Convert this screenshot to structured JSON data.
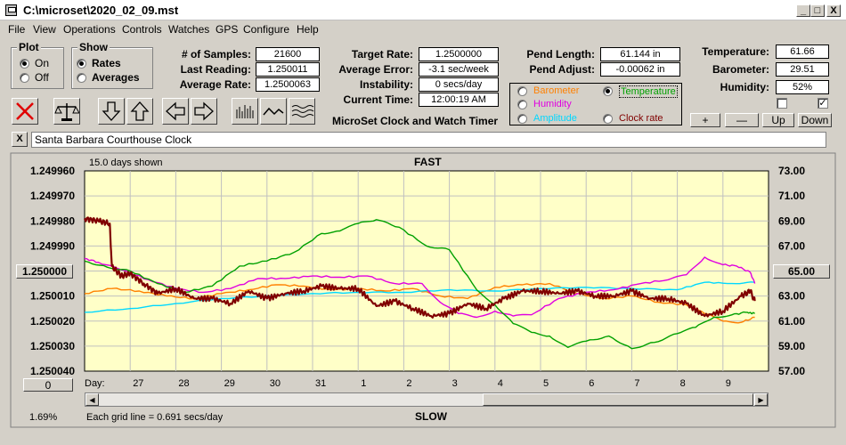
{
  "window": {
    "title": "C:\\microset\\2020_02_09.mst",
    "min": "_",
    "max": "□",
    "close": "X"
  },
  "menu": [
    "File",
    "View",
    "Operations",
    "Controls",
    "Watches",
    "GPS",
    "Configure",
    "Help"
  ],
  "plot_group": {
    "title": "Plot",
    "options": [
      "On",
      "Off"
    ],
    "selected": "On"
  },
  "show_group": {
    "title": "Show",
    "options": [
      "Rates",
      "Averages"
    ],
    "selected": "Rates"
  },
  "stats": {
    "samples_label": "# of Samples:",
    "samples": "21600",
    "last_label": "Last Reading:",
    "last": "1.250011",
    "avg_label": "Average Rate:",
    "avg": "1.2500063",
    "target_label": "Target Rate:",
    "target": "1.2500000",
    "err_label": "Average Error:",
    "err": "-3.1 sec/week",
    "inst_label": "Instability:",
    "inst": "0 secs/day",
    "time_label": "Current Time:",
    "time": "12:00:19 AM",
    "pend_len_label": "Pend Length:",
    "pend_len": "61.144 in",
    "pend_adj_label": "Pend Adjust:",
    "pend_adj": "-0.00062 in",
    "temp_label": "Temperature:",
    "temp": "61.66",
    "baro_label": "Barometer:",
    "baro": "29.51",
    "hum_label": "Humidity:",
    "hum": "52%"
  },
  "app_name": "MicroSet Clock and Watch Timer",
  "sensor_select": {
    "items": [
      {
        "label": "Barometer",
        "color": "#ff8000"
      },
      {
        "label": "Temperature",
        "color": "#00a000"
      },
      {
        "label": "Humidity",
        "color": "#e000e0"
      },
      {
        "label": "Amplitude",
        "color": "#00d8ff"
      },
      {
        "label": "Clock rate",
        "color": "#800000"
      }
    ],
    "selected": "Temperature"
  },
  "right_buttons": [
    "+",
    "—",
    "Up",
    "Down"
  ],
  "checkbox_mark": "✓",
  "clock_close": "X",
  "clock_name": "Santa Barbara Courthouse Clock",
  "chart_header": {
    "days_shown": "15.0 days shown",
    "top": "FAST",
    "bottom": "SLOW"
  },
  "left_ticks": [
    "1.249960",
    "1.249970",
    "1.249980",
    "1.249990",
    "1.250000",
    "1.250010",
    "1.250020",
    "1.250030",
    "1.250040"
  ],
  "right_ticks": [
    "73.00",
    "71.00",
    "69.00",
    "67.00",
    "65.00",
    "63.00",
    "61.00",
    "59.00",
    "57.00"
  ],
  "left_center_btn": "1.250000",
  "right_center_btn": "65.00",
  "zero_btn": "0",
  "day_label": "Day:",
  "day_ticks": [
    "27",
    "28",
    "29",
    "30",
    "31",
    "1",
    "2",
    "3",
    "4",
    "5",
    "6",
    "7",
    "8",
    "9"
  ],
  "footer": {
    "percent": "1.69%",
    "grid_note": "Each grid line = 0.691 secs/day"
  },
  "chart_data": {
    "type": "line",
    "x_unit": "days",
    "xlim": [
      0,
      15
    ],
    "left_axis": {
      "ylim_top": 1.24996,
      "ylim_bottom": 1.25004
    },
    "right_axis": {
      "ylim_top": 73,
      "ylim_bottom": 57
    },
    "series": [
      {
        "name": "Clock rate",
        "color": "#800000",
        "width": 2.2,
        "axis": "left",
        "x": [
          0,
          0.3,
          0.55,
          0.6,
          0.8,
          1.0,
          1.3,
          1.6,
          2.0,
          2.4,
          2.8,
          3.2,
          3.6,
          4.0,
          4.4,
          4.8,
          5.2,
          5.6,
          6.0,
          6.4,
          6.8,
          7.2,
          7.6,
          8.0,
          8.4,
          8.8,
          9.2,
          9.6,
          10.0,
          10.4,
          10.8,
          11.2,
          11.6,
          12.0,
          12.4,
          12.8,
          13.2,
          13.6,
          14.0,
          14.4,
          14.6,
          14.7
        ],
        "y": [
          1.249979,
          1.24998,
          1.249981,
          1.249998,
          1.250002,
          1.250001,
          1.250005,
          1.250009,
          1.250007,
          1.250011,
          1.250011,
          1.250013,
          1.250008,
          1.250011,
          1.250009,
          1.250008,
          1.250006,
          1.250007,
          1.250007,
          1.250014,
          1.250012,
          1.250015,
          1.250018,
          1.250017,
          1.250013,
          1.250015,
          1.250011,
          1.250008,
          1.250008,
          1.250009,
          1.250008,
          1.25001,
          1.25001,
          1.250008,
          1.250011,
          1.250011,
          1.250013,
          1.250018,
          1.250016,
          1.25001,
          1.250008,
          1.250012
        ]
      },
      {
        "name": "Temperature",
        "color": "#00a000",
        "width": 1.4,
        "axis": "right",
        "x": [
          0,
          0.5,
          1.0,
          1.6,
          2.2,
          2.8,
          3.4,
          4.0,
          4.6,
          5.2,
          5.6,
          6.0,
          6.4,
          6.9,
          7.5,
          8.0,
          8.6,
          9.0,
          9.4,
          9.8,
          10.2,
          10.6,
          11.0,
          11.5,
          12.0,
          12.5,
          13.0,
          13.4,
          13.8,
          14.2,
          14.5,
          14.7
        ],
        "y": [
          65.8,
          65.3,
          65.0,
          64.0,
          63.3,
          63.8,
          65.4,
          65.8,
          66.5,
          68.0,
          68.2,
          68.8,
          69.1,
          68.5,
          67.0,
          66.7,
          63.5,
          62.3,
          60.8,
          60.1,
          59.8,
          58.9,
          59.4,
          59.8,
          58.8,
          59.3,
          60.0,
          60.5,
          61.3,
          61.5,
          61.7,
          61.6
        ]
      },
      {
        "name": "Humidity",
        "color": "#e000e0",
        "width": 1.4,
        "axis": "right",
        "x": [
          0,
          0.3,
          0.8,
          1.4,
          2.0,
          2.6,
          3.2,
          3.8,
          4.4,
          5.0,
          5.6,
          6.2,
          6.8,
          7.4,
          7.8,
          8.2,
          8.6,
          9.0,
          9.4,
          9.8,
          10.4,
          11.0,
          11.6,
          12.2,
          12.8,
          13.2,
          13.6,
          14.0,
          14.3,
          14.6,
          14.7
        ],
        "y": [
          66.0,
          65.7,
          65.1,
          64.3,
          63.6,
          63.3,
          63.6,
          64.4,
          64.4,
          64.6,
          64.5,
          64.6,
          64.0,
          64.0,
          62.5,
          61.6,
          61.3,
          61.8,
          61.4,
          61.5,
          62.8,
          63.3,
          63.5,
          64.0,
          64.3,
          64.7,
          66.1,
          65.5,
          65.4,
          64.9,
          64.0
        ]
      },
      {
        "name": "Barometer",
        "color": "#ff8000",
        "width": 1.4,
        "axis": "right",
        "x": [
          0,
          0.6,
          1.2,
          1.8,
          2.4,
          3.0,
          3.6,
          4.2,
          4.8,
          5.4,
          6.0,
          6.6,
          7.2,
          7.8,
          8.4,
          9.0,
          9.6,
          10.2,
          10.8,
          11.4,
          12.0,
          12.6,
          13.2,
          13.6,
          14.0,
          14.4,
          14.7
        ],
        "y": [
          63.2,
          63.6,
          63.4,
          63.0,
          62.8,
          63.2,
          63.5,
          63.9,
          63.8,
          63.5,
          63.6,
          63.4,
          63.6,
          63.0,
          62.8,
          63.7,
          63.9,
          64.0,
          63.2,
          62.8,
          63.0,
          62.5,
          62.3,
          61.6,
          61.0,
          60.9,
          61.3
        ]
      },
      {
        "name": "Amplitude",
        "color": "#00d8ff",
        "width": 1.4,
        "axis": "right",
        "x": [
          0,
          1.0,
          2.0,
          3.0,
          4.0,
          5.0,
          6.0,
          7.0,
          8.0,
          9.0,
          10.0,
          11.0,
          12.0,
          13.0,
          13.6,
          14.2,
          14.7
        ],
        "y": [
          61.7,
          62.0,
          62.4,
          62.8,
          63.0,
          63.2,
          63.3,
          63.3,
          63.5,
          63.4,
          63.6,
          63.7,
          63.6,
          63.5,
          64.1,
          64.0,
          64.1
        ]
      }
    ]
  }
}
